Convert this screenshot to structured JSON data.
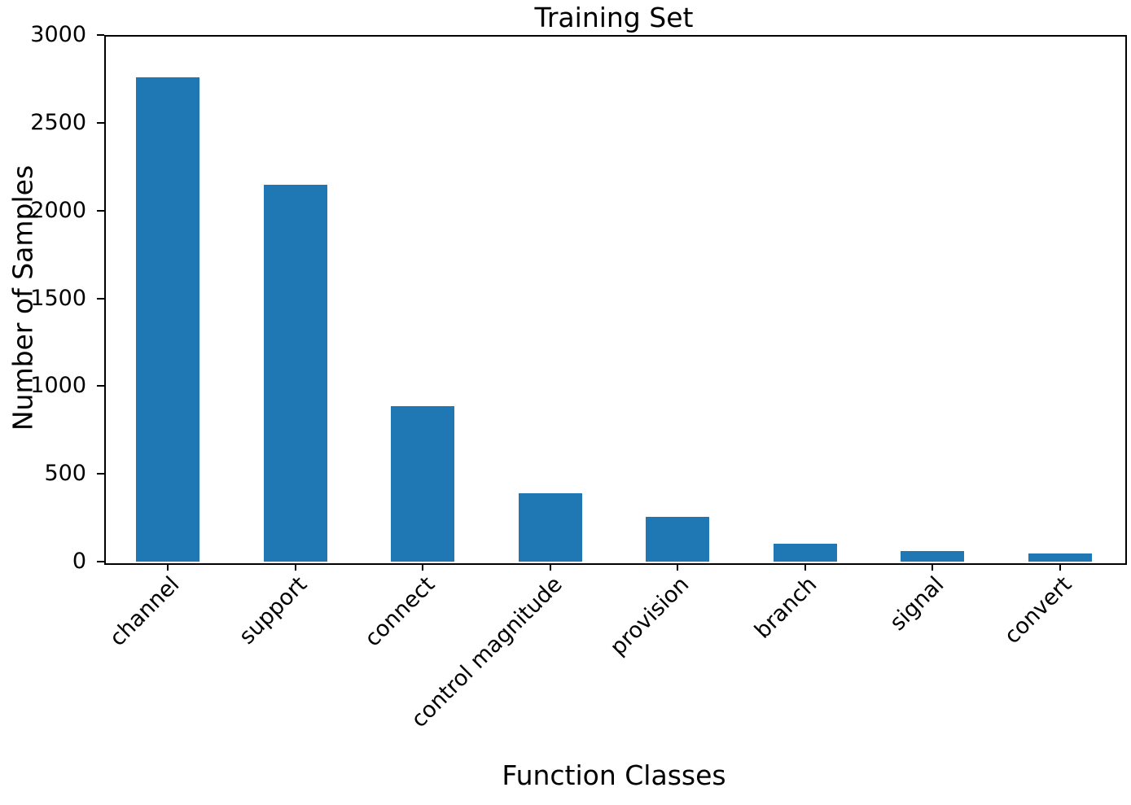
{
  "chart_data": {
    "type": "bar",
    "title": "Training Set",
    "xlabel": "Function Classes",
    "ylabel": "Number of Samples",
    "categories": [
      "channel",
      "support",
      "connect",
      "control magnitude",
      "provision",
      "branch",
      "signal",
      "convert"
    ],
    "values": [
      2760,
      2145,
      885,
      390,
      255,
      100,
      62,
      46
    ],
    "ylim": [
      0,
      3000
    ],
    "yticks": [
      0,
      500,
      1000,
      1500,
      2000,
      2500,
      3000
    ],
    "bar_color": "#1f77b4",
    "axis_color": "#000000",
    "background_color": "#ffffff",
    "grid": false,
    "legend": false,
    "x_tick_label_rotation_deg": 45,
    "bar_width_fraction": 0.5
  }
}
